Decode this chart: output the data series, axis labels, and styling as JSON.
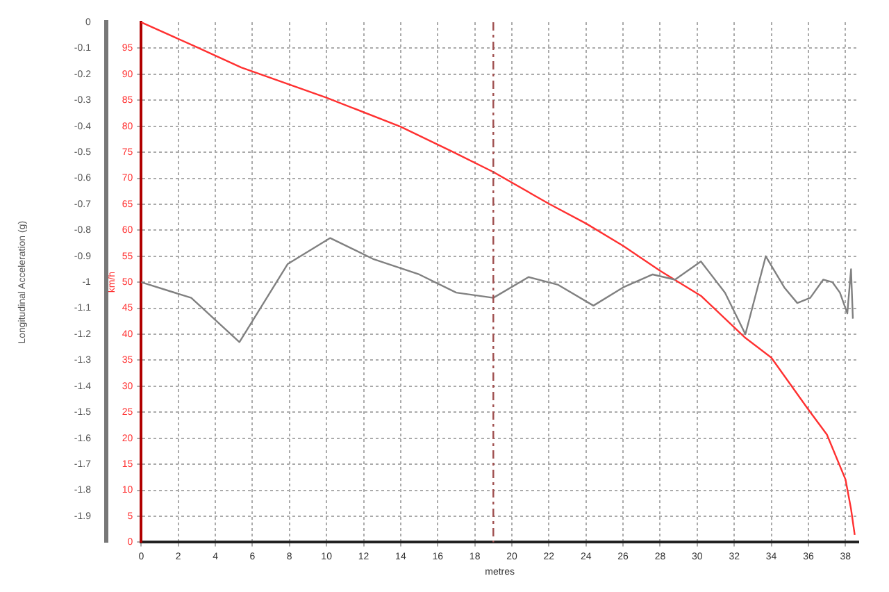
{
  "chart_data": {
    "type": "line",
    "xlabel": "metres",
    "ylabel": "Longitudinal Acceleration (g)",
    "y2label": "km/h",
    "xlim": [
      0,
      38.7
    ],
    "xticks": [
      0,
      2,
      4,
      6,
      8,
      10,
      12,
      14,
      16,
      18,
      20,
      22,
      24,
      26,
      28,
      30,
      32,
      34,
      36,
      38
    ],
    "ylim": [
      -2,
      0
    ],
    "yticks": [
      0,
      -0.1,
      -0.2,
      -0.3,
      -0.4,
      -0.5,
      -0.6,
      -0.7,
      -0.8,
      -0.9,
      -1,
      -1.1,
      -1.2,
      -1.3,
      -1.4,
      -1.5,
      -1.6,
      -1.7,
      -1.8,
      -1.9
    ],
    "y2lim": [
      0,
      100
    ],
    "y2ticks": [
      0,
      5,
      10,
      15,
      20,
      25,
      30,
      35,
      40,
      45,
      50,
      55,
      60,
      65,
      70,
      75,
      80,
      85,
      90,
      95
    ],
    "grid": true,
    "marker": "none",
    "line_style": "solid",
    "ref_lines": [
      {
        "axis": "x",
        "value": 19,
        "color": "#a05050",
        "line_style": "dashed"
      }
    ],
    "series": [
      {
        "color": "#808080",
        "axis": "y",
        "x": [
          0,
          2.7,
          5.3,
          7.9,
          10.2,
          12.5,
          15,
          17,
          19,
          20.9,
          22.5,
          24.4,
          26,
          27.6,
          28.8,
          30.2,
          31.5,
          32.6,
          33.7,
          34.7,
          35.4,
          36.1,
          36.8,
          37.3,
          37.7,
          38.1,
          38.3,
          38.4
        ],
        "values": [
          -1,
          -1.06,
          -1.23,
          -0.93,
          -0.83,
          -0.91,
          -0.97,
          -1.04,
          -1.06,
          -0.98,
          -1.01,
          -1.09,
          -1.02,
          -0.97,
          -0.99,
          -0.92,
          -1.04,
          -1.2,
          -0.9,
          -1.02,
          -1.08,
          -1.06,
          -0.99,
          -1,
          -1.04,
          -1.12,
          -0.95,
          -1.14
        ]
      },
      {
        "color": "#ff3030",
        "axis": "y2",
        "x": [
          0,
          3,
          5.4,
          10,
          14,
          16.8,
          19,
          22,
          24,
          26,
          28,
          30.2,
          32.6,
          34,
          36,
          37,
          38,
          38.3,
          38.5
        ],
        "values": [
          100,
          95.2,
          91.3,
          85.5,
          79.9,
          75.1,
          71.2,
          65.1,
          61.3,
          57,
          52.2,
          47.4,
          39.3,
          35.5,
          25.5,
          20.7,
          12.1,
          6.4,
          1.4
        ]
      }
    ]
  }
}
